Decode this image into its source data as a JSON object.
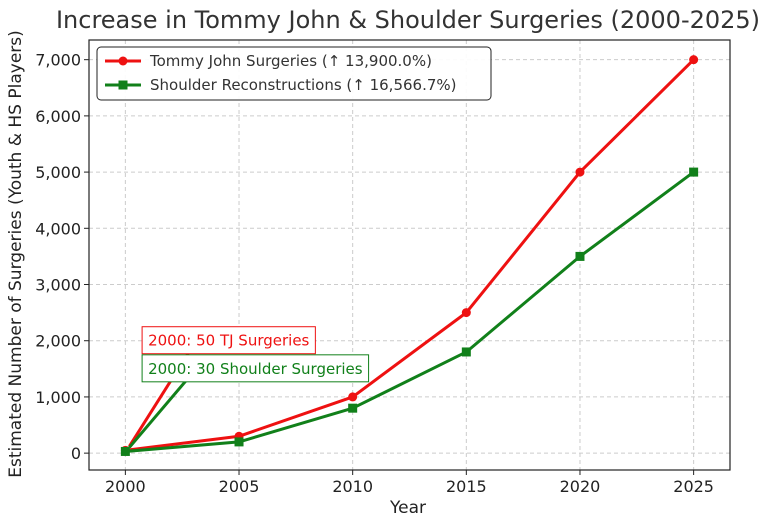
{
  "chart_data": {
    "type": "line",
    "title": "Increase in Tommy John & Shoulder Surgeries (2000-2025)",
    "xlabel": "Year",
    "ylabel": "Estimated Number of Surgeries (Youth & HS Players)",
    "x": [
      2000,
      2005,
      2010,
      2015,
      2020,
      2025
    ],
    "xlim": [
      1998.4,
      2026.6
    ],
    "ylim": [
      -300,
      7350
    ],
    "xticks": [
      2000,
      2005,
      2010,
      2015,
      2020,
      2025
    ],
    "yticks": [
      0,
      1000,
      2000,
      3000,
      4000,
      5000,
      6000,
      7000
    ],
    "ytick_labels": [
      "0",
      "1,000",
      "2,000",
      "3,000",
      "4,000",
      "5,000",
      "6,000",
      "7,000"
    ],
    "grid": true,
    "legend_position": "top-left",
    "series": [
      {
        "name": "Tommy John Surgeries (↑ 13,900.0%)",
        "values": [
          50,
          300,
          1000,
          2500,
          5000,
          7000
        ],
        "color": "#ee1111",
        "marker": "circle"
      },
      {
        "name": "Shoulder Reconstructions (↑ 16,566.7%)",
        "values": [
          30,
          200,
          800,
          1800,
          3500,
          5000
        ],
        "color": "#11801a",
        "marker": "square"
      }
    ],
    "annotations": [
      {
        "text": "2000: 50 TJ Surgeries",
        "color": "#ee1111",
        "point": [
          2000,
          50
        ],
        "text_at": [
          2001,
          2000
        ]
      },
      {
        "text": "2000: 30 Shoulder Surgeries",
        "color": "#11801a",
        "point": [
          2000,
          30
        ],
        "text_at": [
          2001,
          1500
        ]
      }
    ]
  }
}
